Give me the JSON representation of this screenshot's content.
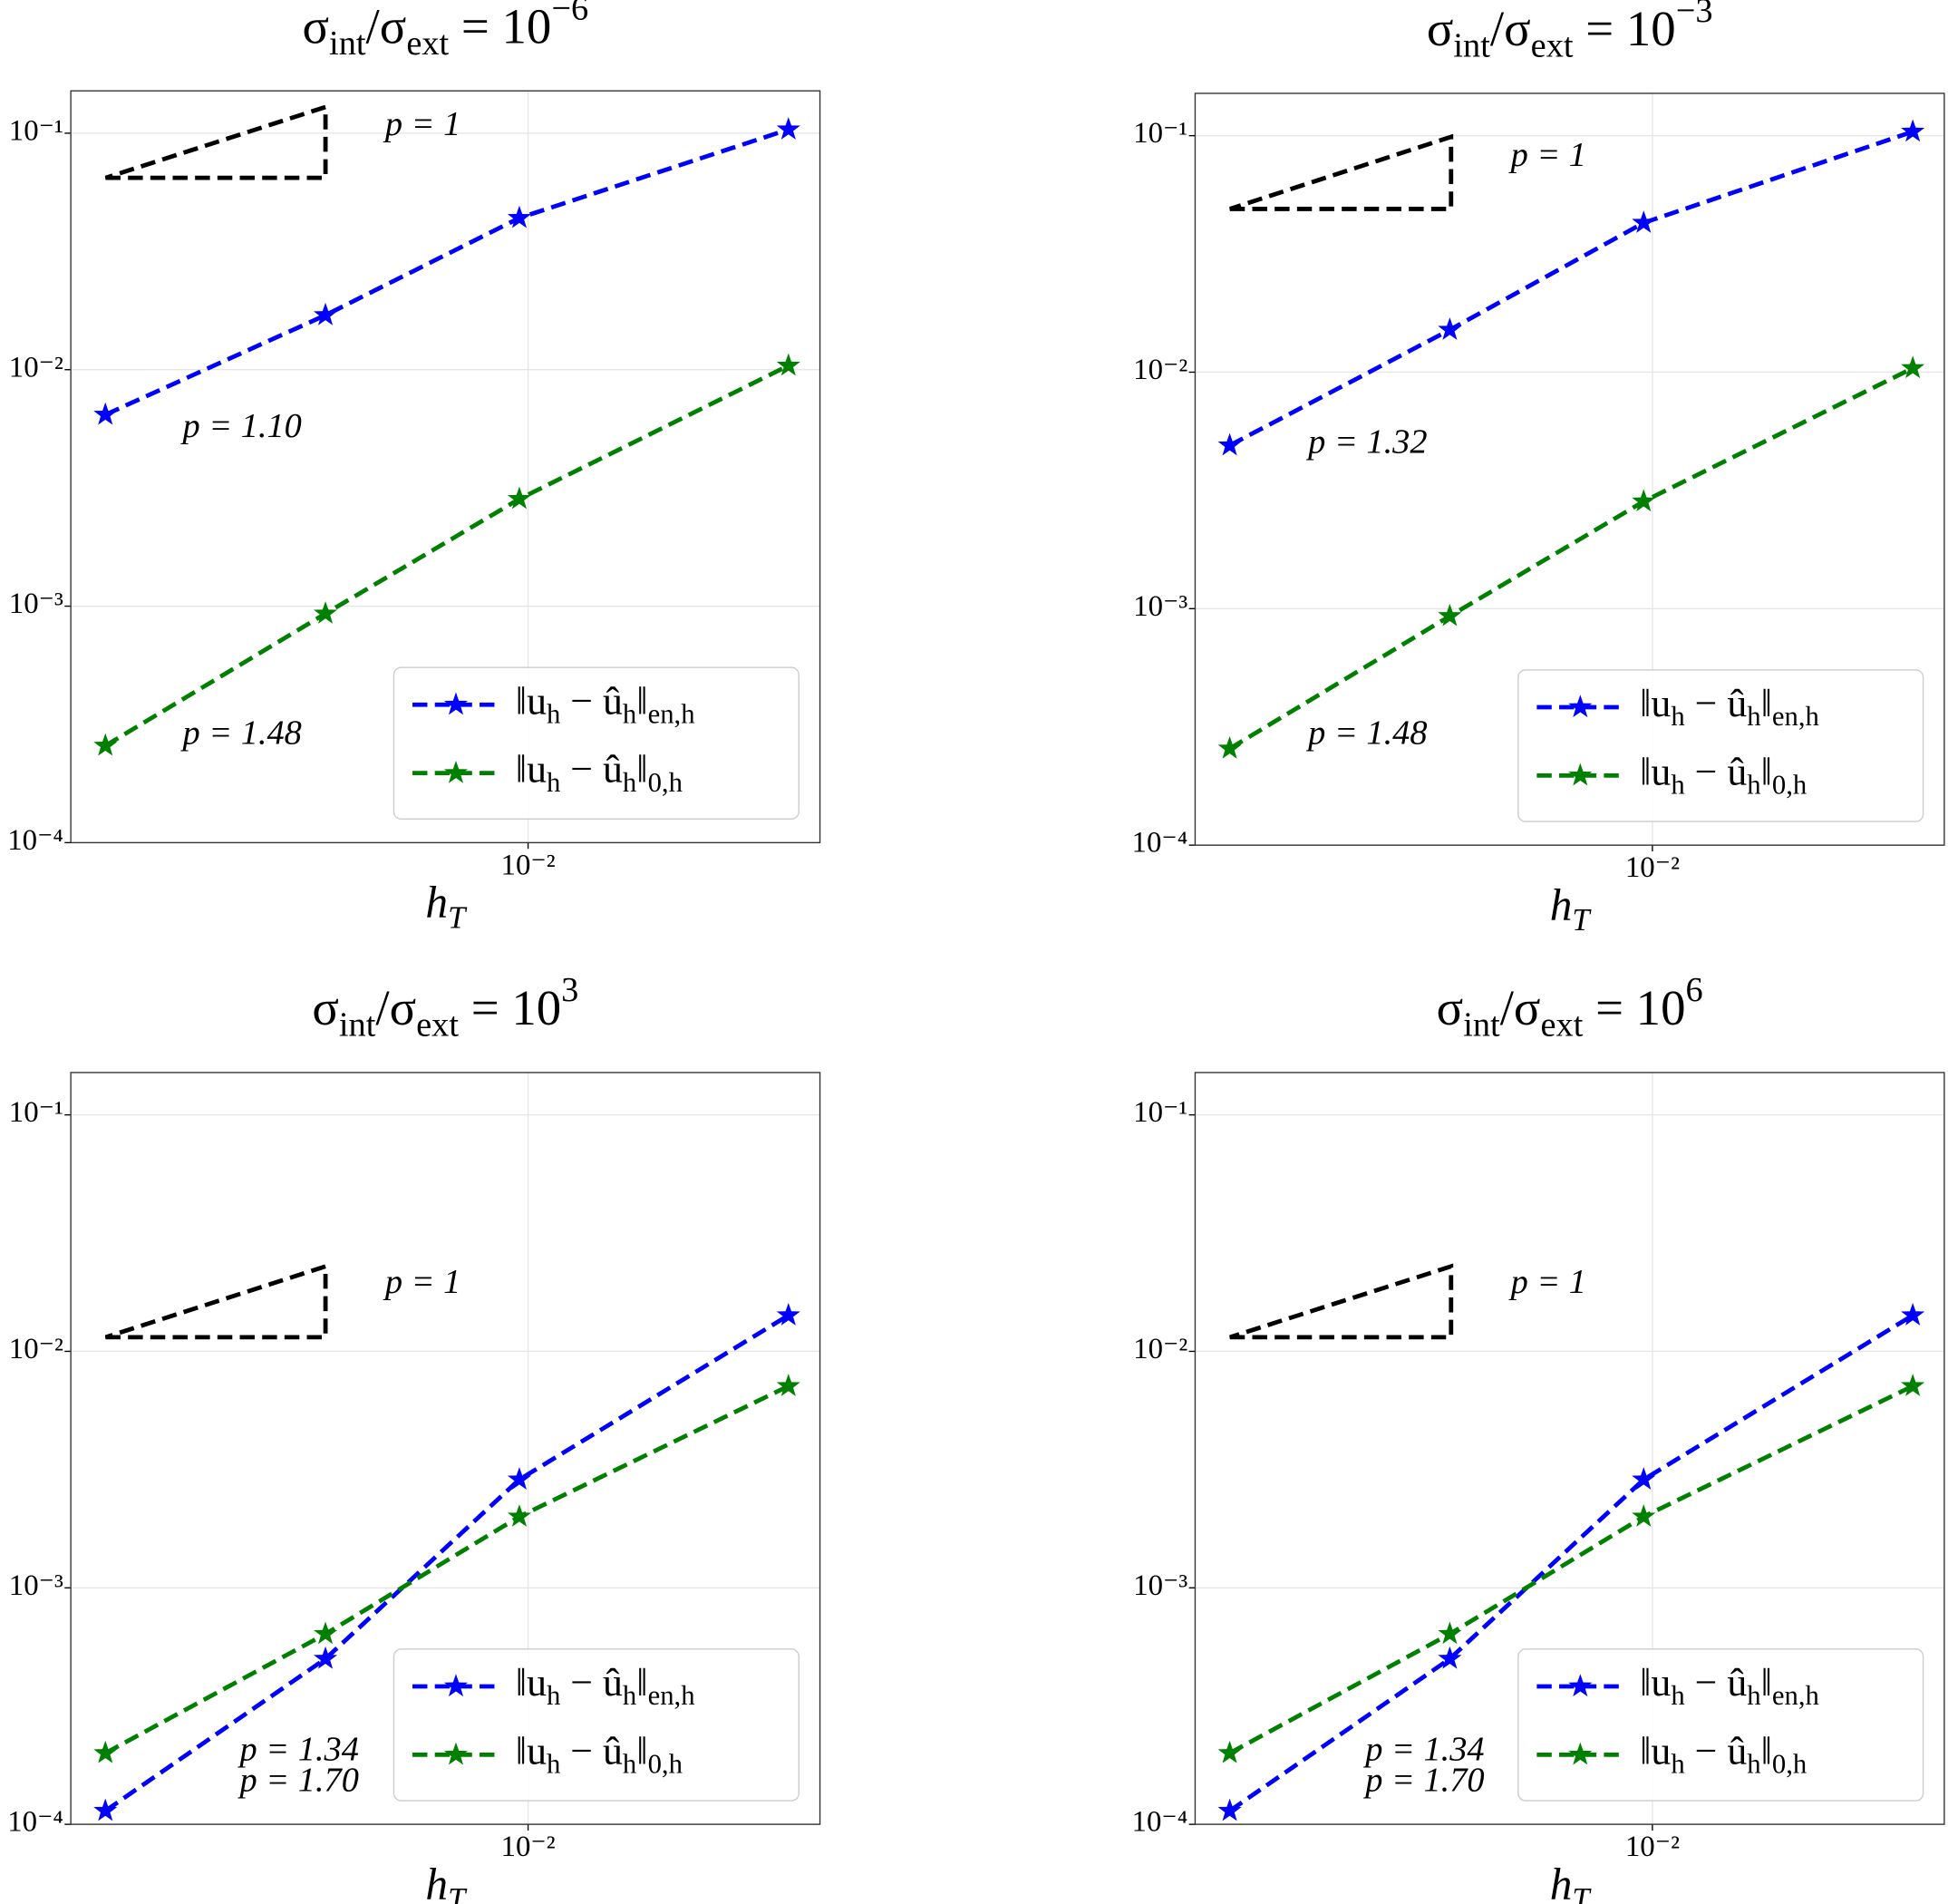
{
  "chart_data": [
    {
      "type": "line",
      "title": [
        "σ",
        "int",
        "/σ",
        "ext",
        " = 10",
        "−6"
      ],
      "xlabel": [
        "h",
        "T"
      ],
      "x": [
        0.00197,
        0.00459,
        0.00967,
        0.0272
      ],
      "series": [
        {
          "name": [
            "‖u",
            "h",
            " − û",
            "h",
            "‖",
            "en,h"
          ],
          "color": "#0000ff",
          "values": [
            0.00645,
            0.017,
            0.0438,
            0.1037
          ]
        },
        {
          "name": [
            "‖u",
            "h",
            " − û",
            "h",
            "‖",
            "0,h"
          ],
          "color": "#008000",
          "values": [
            0.000257,
            0.00093,
            0.00284,
            0.0104
          ]
        }
      ],
      "annotations": [
        {
          "text": "p = 1.10",
          "color": "#0000ff"
        },
        {
          "text": "p = 1.48",
          "color": "#008000"
        }
      ],
      "slope_label": "p = 1",
      "xlim": [
        0.001725,
        0.0307
      ],
      "ylim": [
        0.0001,
        0.151
      ],
      "xticks": [
        {
          "value": 0.01,
          "label": "10⁻²"
        }
      ],
      "yticks": [
        {
          "value": 0.0001,
          "label": "10⁻⁴"
        },
        {
          "value": 0.001,
          "label": "10⁻³"
        },
        {
          "value": 0.01,
          "label": "10⁻²"
        },
        {
          "value": 0.1,
          "label": "10⁻¹"
        }
      ],
      "log_scale": true,
      "grid": true,
      "legend": "lower right"
    },
    {
      "type": "line",
      "title": [
        "σ",
        "int",
        "/σ",
        "ext",
        " = 10",
        "−3"
      ],
      "xlabel": [
        "h",
        "T"
      ],
      "x": [
        0.00197,
        0.00459,
        0.00967,
        0.0272
      ],
      "series": [
        {
          "name": [
            "‖u",
            "h",
            " − û",
            "h",
            "‖",
            "en,h"
          ],
          "color": "#0000ff",
          "values": [
            0.0049,
            0.0151,
            0.0428,
            0.104
          ]
        },
        {
          "name": [
            "‖u",
            "h",
            " − û",
            "h",
            "‖",
            "0,h"
          ],
          "color": "#008000",
          "values": [
            0.000256,
            0.00093,
            0.00284,
            0.0104
          ]
        }
      ],
      "annotations": [
        {
          "text": "p = 1.32",
          "color": "#0000ff"
        },
        {
          "text": "p = 1.48",
          "color": "#008000"
        }
      ],
      "slope_label": "p = 1",
      "xlim": [
        0.001725,
        0.0307
      ],
      "ylim": [
        0.0001,
        0.151
      ],
      "xticks": [
        {
          "value": 0.01,
          "label": "10⁻²"
        }
      ],
      "yticks": [
        {
          "value": 0.0001,
          "label": "10⁻⁴"
        },
        {
          "value": 0.001,
          "label": "10⁻³"
        },
        {
          "value": 0.01,
          "label": "10⁻²"
        },
        {
          "value": 0.1,
          "label": "10⁻¹"
        }
      ],
      "log_scale": true,
      "grid": true,
      "legend": "lower right"
    },
    {
      "type": "line",
      "title": [
        "σ",
        "int",
        "/σ",
        "ext",
        " = 10",
        "3"
      ],
      "xlabel": [
        "h",
        "T"
      ],
      "x": [
        0.00197,
        0.00459,
        0.00967,
        0.0272
      ],
      "series": [
        {
          "name": [
            "‖u",
            "h",
            " − û",
            "h",
            "‖",
            "en,h"
          ],
          "color": "#0000ff",
          "values": [
            0.000114,
            0.000501,
            0.00287,
            0.0142
          ]
        },
        {
          "name": [
            "‖u",
            "h",
            " − û",
            "h",
            "‖",
            "0,h"
          ],
          "color": "#008000",
          "values": [
            0.0002,
            0.000638,
            0.002,
            0.00713
          ]
        }
      ],
      "annotations": [
        {
          "text": "p = 1.34",
          "color": "#008000"
        },
        {
          "text": "p = 1.70",
          "color": "#0000ff"
        }
      ],
      "slope_label": "p = 1",
      "xlim": [
        0.001725,
        0.0307
      ],
      "ylim": [
        0.0001,
        0.151
      ],
      "xticks": [
        {
          "value": 0.01,
          "label": "10⁻²"
        }
      ],
      "yticks": [
        {
          "value": 0.0001,
          "label": "10⁻⁴"
        },
        {
          "value": 0.001,
          "label": "10⁻³"
        },
        {
          "value": 0.01,
          "label": "10⁻²"
        },
        {
          "value": 0.1,
          "label": "10⁻¹"
        }
      ],
      "log_scale": true,
      "grid": true,
      "legend": "lower right"
    },
    {
      "type": "line",
      "title": [
        "σ",
        "int",
        "/σ",
        "ext",
        " = 10",
        "6"
      ],
      "xlabel": [
        "h",
        "T"
      ],
      "x": [
        0.00197,
        0.00459,
        0.00967,
        0.0272
      ],
      "series": [
        {
          "name": [
            "‖u",
            "h",
            " − û",
            "h",
            "‖",
            "en,h"
          ],
          "color": "#0000ff",
          "values": [
            0.000114,
            0.000501,
            0.00287,
            0.0142
          ]
        },
        {
          "name": [
            "‖u",
            "h",
            " − û",
            "h",
            "‖",
            "0,h"
          ],
          "color": "#008000",
          "values": [
            0.0002,
            0.000638,
            0.002,
            0.00713
          ]
        }
      ],
      "annotations": [
        {
          "text": "p = 1.34",
          "color": "#008000"
        },
        {
          "text": "p = 1.70",
          "color": "#0000ff"
        }
      ],
      "slope_label": "p = 1",
      "xlim": [
        0.001725,
        0.0307
      ],
      "ylim": [
        0.0001,
        0.151
      ],
      "xticks": [
        {
          "value": 0.01,
          "label": "10⁻²"
        }
      ],
      "yticks": [
        {
          "value": 0.0001,
          "label": "10⁻⁴"
        },
        {
          "value": 0.001,
          "label": "10⁻³"
        },
        {
          "value": 0.01,
          "label": "10⁻²"
        },
        {
          "value": 0.1,
          "label": "10⁻¹"
        }
      ],
      "log_scale": true,
      "grid": true,
      "legend": "lower right"
    }
  ]
}
